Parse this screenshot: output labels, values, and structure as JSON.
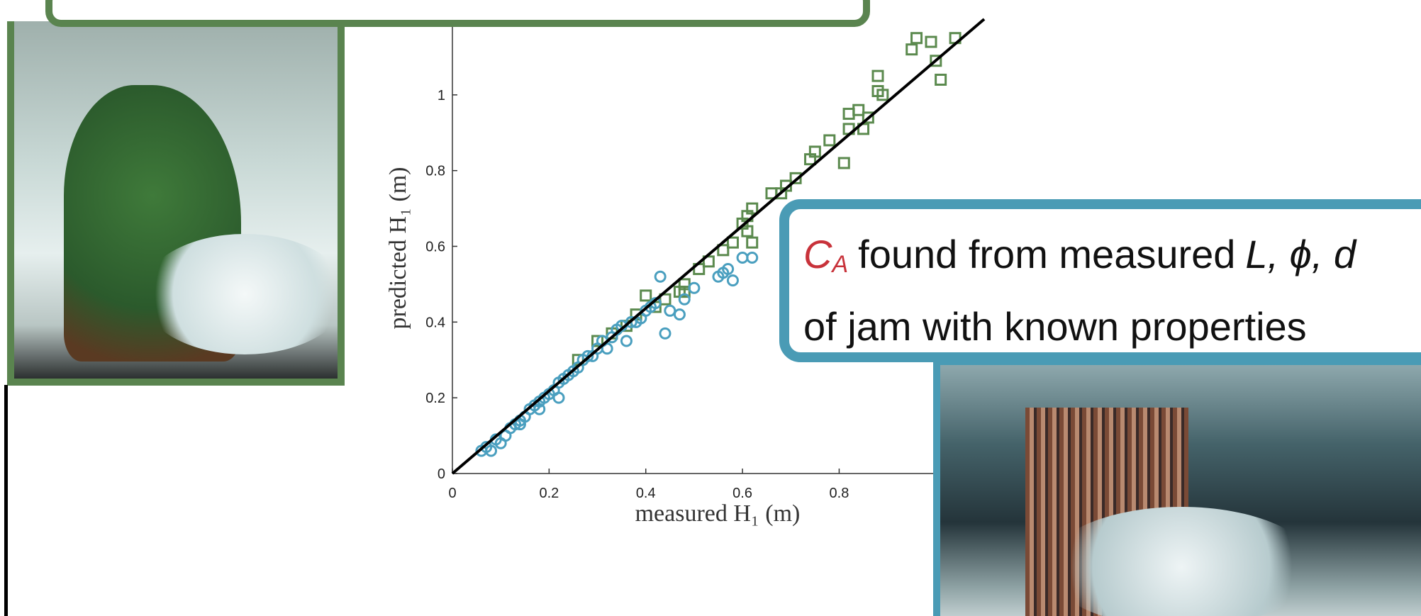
{
  "chart_data": {
    "type": "scatter",
    "xlabel": "measured H₁ (m)",
    "ylabel": "predicted H₁ (m)",
    "xlim": [
      0,
      1.1
    ],
    "ylim": [
      0,
      1.2
    ],
    "xticks": [
      0,
      0.2,
      0.4,
      0.6,
      0.8
    ],
    "yticks": [
      0,
      0.2,
      0.4,
      0.6,
      0.8,
      1
    ],
    "reference_line": {
      "x": [
        0,
        1.1
      ],
      "y": [
        0,
        1.2
      ],
      "color": "#000000"
    },
    "series": [
      {
        "marker": "square",
        "color": "#5b8a4e",
        "x": [
          0.96,
          0.99,
          1.04,
          0.95,
          1.0,
          1.01,
          0.88,
          0.88,
          0.89,
          0.84,
          0.82,
          0.86,
          0.82,
          0.85,
          0.81,
          0.78,
          0.75,
          0.74,
          0.71,
          0.69,
          0.68,
          0.66,
          0.62,
          0.61,
          0.6,
          0.61,
          0.62,
          0.58,
          0.56,
          0.53,
          0.51,
          0.48,
          0.47,
          0.42,
          0.4,
          0.36,
          0.3,
          0.26,
          0.48,
          0.44,
          0.38,
          0.33
        ],
        "y": [
          1.15,
          1.14,
          1.15,
          1.12,
          1.09,
          1.04,
          1.05,
          1.01,
          1.0,
          0.96,
          0.95,
          0.94,
          0.91,
          0.91,
          0.82,
          0.88,
          0.85,
          0.83,
          0.78,
          0.76,
          0.74,
          0.74,
          0.7,
          0.68,
          0.66,
          0.64,
          0.61,
          0.61,
          0.59,
          0.56,
          0.54,
          0.5,
          0.48,
          0.44,
          0.47,
          0.39,
          0.35,
          0.3,
          0.48,
          0.46,
          0.42,
          0.37
        ]
      },
      {
        "marker": "circle",
        "color": "#4a9fbf",
        "x": [
          0.6,
          0.62,
          0.56,
          0.58,
          0.43,
          0.48,
          0.47,
          0.44,
          0.38,
          0.36,
          0.32,
          0.28,
          0.26,
          0.23,
          0.21,
          0.19,
          0.17,
          0.15,
          0.13,
          0.11,
          0.1,
          0.08,
          0.06,
          0.07,
          0.09,
          0.12,
          0.14,
          0.16,
          0.18,
          0.2,
          0.22,
          0.24,
          0.25,
          0.27,
          0.29,
          0.3,
          0.31,
          0.33,
          0.34,
          0.35,
          0.37,
          0.39,
          0.4,
          0.41,
          0.42,
          0.45,
          0.5,
          0.55,
          0.57,
          0.22,
          0.18,
          0.14
        ],
        "y": [
          0.57,
          0.57,
          0.53,
          0.51,
          0.52,
          0.46,
          0.42,
          0.37,
          0.4,
          0.35,
          0.33,
          0.31,
          0.28,
          0.25,
          0.22,
          0.2,
          0.18,
          0.15,
          0.13,
          0.1,
          0.08,
          0.06,
          0.06,
          0.07,
          0.09,
          0.12,
          0.14,
          0.17,
          0.19,
          0.21,
          0.24,
          0.26,
          0.27,
          0.3,
          0.31,
          0.33,
          0.35,
          0.36,
          0.38,
          0.39,
          0.4,
          0.41,
          0.43,
          0.44,
          0.45,
          0.43,
          0.49,
          0.52,
          0.54,
          0.2,
          0.17,
          0.13
        ]
      }
    ]
  },
  "callout": {
    "symbol": "C",
    "subscript": "A",
    "line1": "found from measured",
    "variables": "L, ϕ, d",
    "line2": "of jam with known properties"
  }
}
